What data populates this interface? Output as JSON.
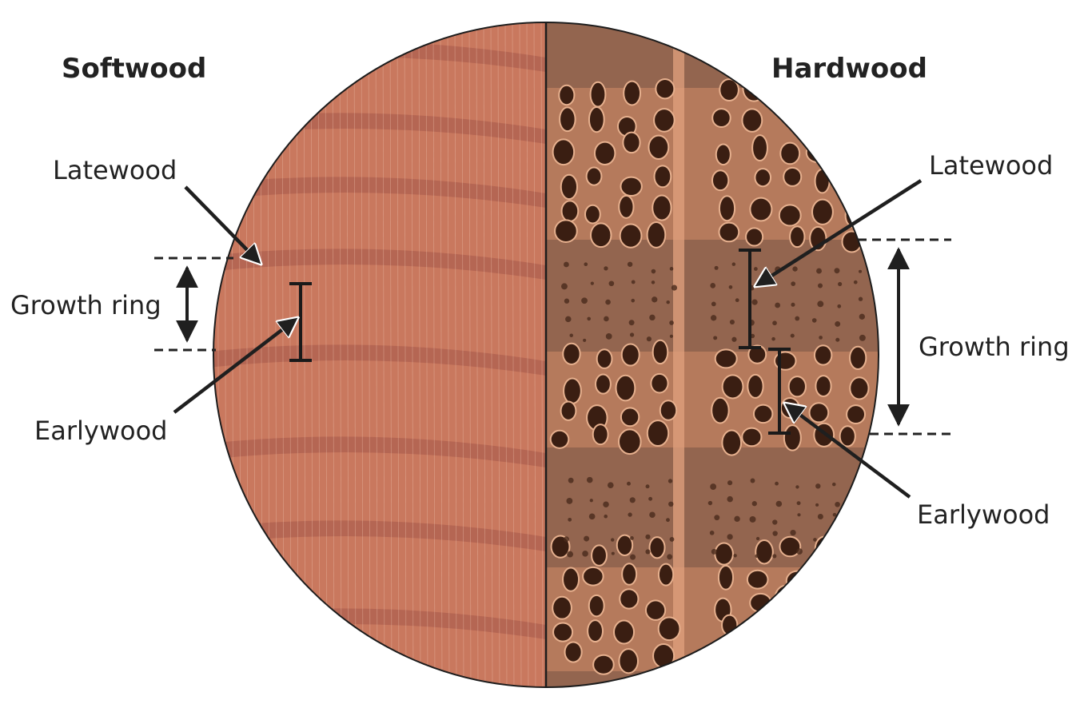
{
  "left_panel": {
    "heading": "Softwood",
    "latewood_label": "Latewood",
    "growth_ring_label": "Growth ring",
    "earlywood_label": "Earlywood"
  },
  "right_panel": {
    "heading": "Hardwood",
    "latewood_label": "Latewood",
    "growth_ring_label": "Growth ring",
    "earlywood_label": "Earlywood"
  },
  "colors": {
    "softwood_base": "#c9785e",
    "softwood_latewood_band": "#a4584a",
    "hardwood_base": "#b57a5c",
    "hardwood_latewood_band": "#7d5646",
    "vessel_pore": "#3a1e12",
    "annotation": "#222222"
  }
}
